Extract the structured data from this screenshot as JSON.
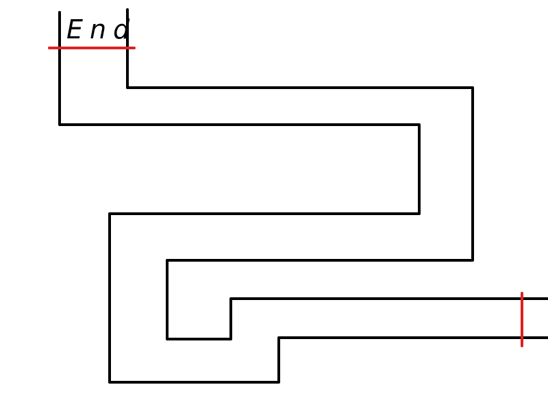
{
  "maze": {
    "end_label": "End",
    "colors": {
      "background": "#ffffff",
      "wall": "#000000",
      "marker": "#e02020"
    }
  }
}
